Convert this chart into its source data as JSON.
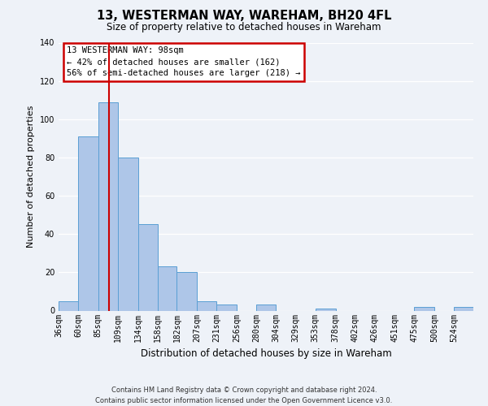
{
  "title": "13, WESTERMAN WAY, WAREHAM, BH20 4FL",
  "subtitle": "Size of property relative to detached houses in Wareham",
  "xlabel": "Distribution of detached houses by size in Wareham",
  "ylabel": "Number of detached properties",
  "bin_labels": [
    "36sqm",
    "60sqm",
    "85sqm",
    "109sqm",
    "134sqm",
    "158sqm",
    "182sqm",
    "207sqm",
    "231sqm",
    "256sqm",
    "280sqm",
    "304sqm",
    "329sqm",
    "353sqm",
    "378sqm",
    "402sqm",
    "426sqm",
    "451sqm",
    "475sqm",
    "500sqm",
    "524sqm"
  ],
  "bin_edges": [
    36,
    60,
    85,
    109,
    134,
    158,
    182,
    207,
    231,
    256,
    280,
    304,
    329,
    353,
    378,
    402,
    426,
    451,
    475,
    500,
    524,
    548
  ],
  "counts": [
    5,
    91,
    109,
    80,
    45,
    23,
    20,
    5,
    3,
    0,
    3,
    0,
    0,
    1,
    0,
    0,
    0,
    0,
    2,
    0,
    2
  ],
  "bar_color": "#aec6e8",
  "bar_edge_color": "#5a9fd4",
  "vline_x": 98,
  "vline_color": "#cc0000",
  "annotation_line1": "13 WESTERMAN WAY: 98sqm",
  "annotation_line2": "← 42% of detached houses are smaller (162)",
  "annotation_line3": "56% of semi-detached houses are larger (218) →",
  "annotation_box_color": "#cc0000",
  "ylim": [
    0,
    140
  ],
  "yticks": [
    0,
    20,
    40,
    60,
    80,
    100,
    120,
    140
  ],
  "footer_line1": "Contains HM Land Registry data © Crown copyright and database right 2024.",
  "footer_line2": "Contains public sector information licensed under the Open Government Licence v3.0.",
  "bg_color": "#eef2f8",
  "plot_bg_color": "#eef2f8",
  "grid_color": "#ffffff",
  "title_fontsize": 10.5,
  "subtitle_fontsize": 8.5,
  "ylabel_fontsize": 8,
  "xlabel_fontsize": 8.5,
  "tick_fontsize": 7,
  "annot_fontsize": 7.5,
  "footer_fontsize": 6
}
